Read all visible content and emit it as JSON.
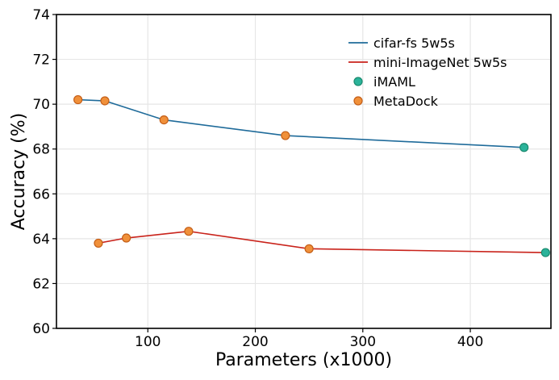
{
  "chart_data": {
    "type": "line",
    "title": "",
    "xlabel": "Parameters (x1000)",
    "ylabel": "Accuracy (%)",
    "xlim": [
      15,
      475
    ],
    "ylim": [
      60,
      74
    ],
    "xticks": [
      100,
      200,
      300,
      400
    ],
    "yticks": [
      60,
      62,
      64,
      66,
      68,
      70,
      72,
      74
    ],
    "grid": true,
    "legend_position": "top-right",
    "series": [
      {
        "name": "cifar-fs 5w5s",
        "kind": "line",
        "color": "#1f6b9a",
        "points": [
          [
            35,
            70.2
          ],
          [
            60,
            70.15
          ],
          [
            115,
            69.3
          ],
          [
            228,
            68.6
          ],
          [
            450,
            68.07
          ]
        ]
      },
      {
        "name": "mini-ImageNet 5w5s",
        "kind": "line",
        "color": "#c9231b",
        "points": [
          [
            54,
            63.8
          ],
          [
            80,
            64.03
          ],
          [
            138,
            64.33
          ],
          [
            250,
            63.55
          ],
          [
            470,
            63.38
          ]
        ]
      },
      {
        "name": "iMAML",
        "kind": "marker",
        "color": "#2bb39a",
        "edge": "#1a8a6e",
        "points": [
          [
            450,
            68.07
          ],
          [
            470,
            63.38
          ]
        ]
      },
      {
        "name": "MetaDock",
        "kind": "marker",
        "color": "#f0903a",
        "edge": "#c45e17",
        "points": [
          [
            35,
            70.2
          ],
          [
            60,
            70.15
          ],
          [
            115,
            69.3
          ],
          [
            228,
            68.6
          ],
          [
            54,
            63.8
          ],
          [
            80,
            64.03
          ],
          [
            138,
            64.33
          ],
          [
            250,
            63.55
          ]
        ]
      }
    ]
  }
}
